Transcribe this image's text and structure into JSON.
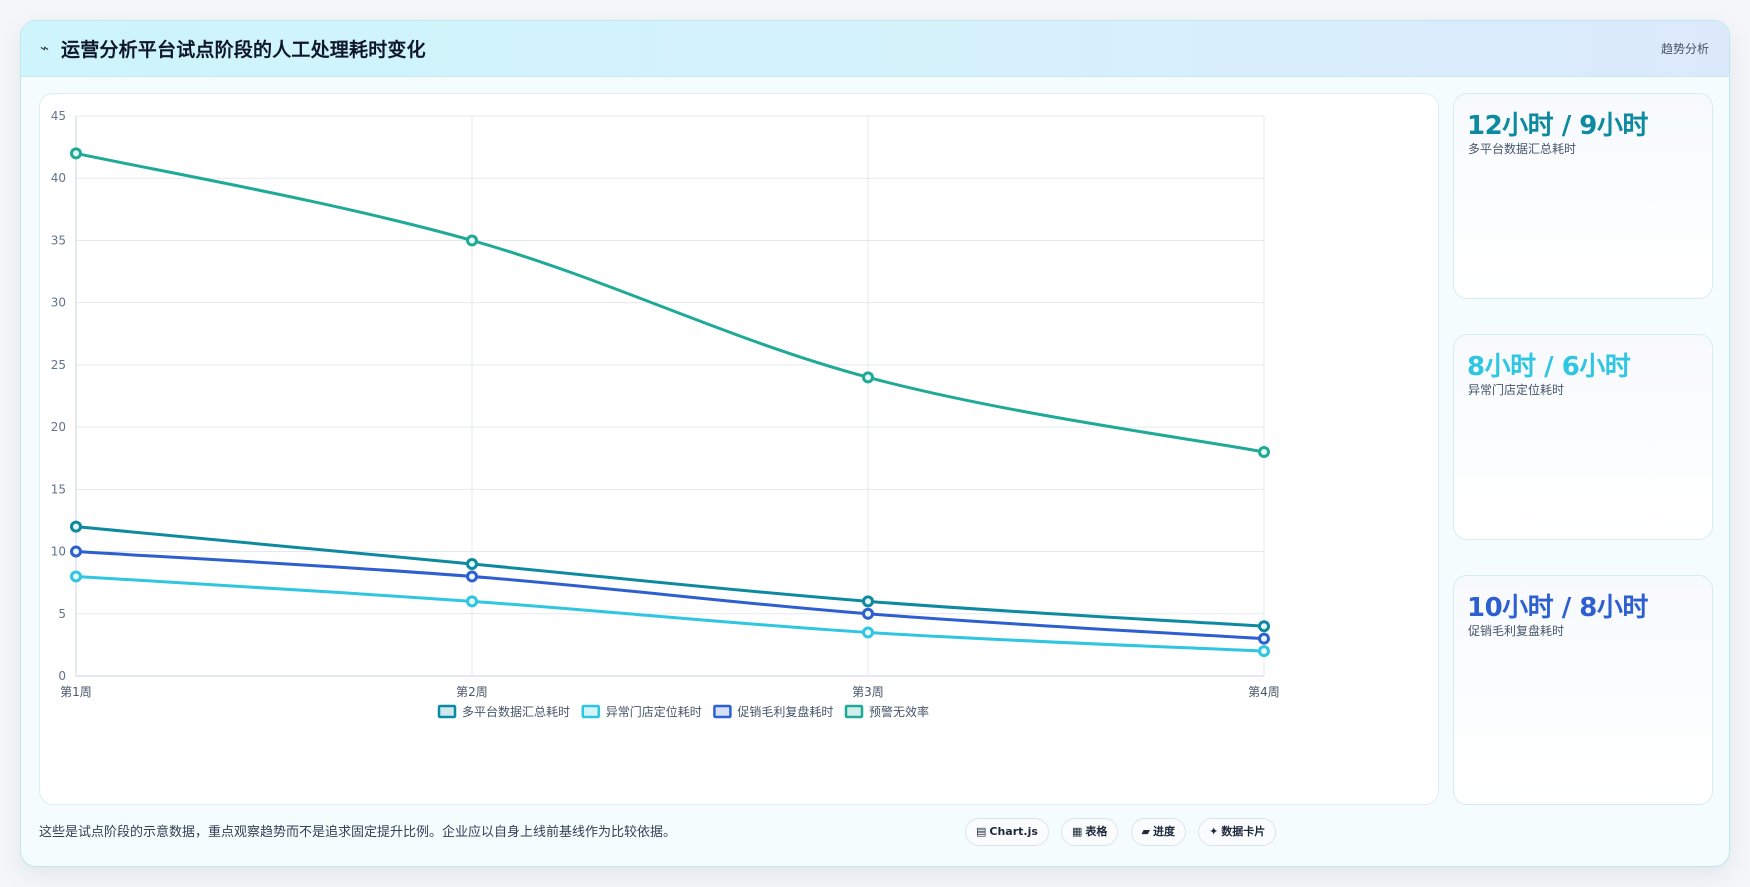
{
  "header": {
    "icon": "pulse-icon",
    "title": "运营分析平台试点阶段的人工处理耗时变化",
    "badge": "趋势分析"
  },
  "stats": [
    {
      "value": "12小时 / 9小时",
      "label": "多平台数据汇总耗时",
      "color": "#0e8aa0"
    },
    {
      "value": "8小时 / 6小时",
      "label": "异常门店定位耗时",
      "color": "#2ec6e0"
    },
    {
      "value": "10小时 / 8小时",
      "label": "促销毛利复盘耗时",
      "color": "#2d5fd1"
    }
  ],
  "footnote": "这些是试点阶段的示意数据，重点观察趋势而不是追求固定提升比例。企业应以自身上线前基线作为比较依据。",
  "chips": [
    {
      "icon": "chart-icon",
      "glyph": "▤",
      "label": "Chart.js"
    },
    {
      "icon": "table-icon",
      "glyph": "▦",
      "label": "表格"
    },
    {
      "icon": "progress-icon",
      "glyph": "▰",
      "label": "进度"
    },
    {
      "icon": "card-icon",
      "glyph": "✦",
      "label": "数据卡片"
    }
  ],
  "chart_data": {
    "type": "line",
    "categories": [
      "第1周",
      "第2周",
      "第3周",
      "第4周"
    ],
    "ylim": [
      0,
      45
    ],
    "yticks": [
      0,
      5,
      10,
      15,
      20,
      25,
      30,
      35,
      40,
      45
    ],
    "grid": true,
    "legend": "bottom",
    "series": [
      {
        "name": "多平台数据汇总耗时",
        "values": [
          12,
          9,
          6,
          4
        ],
        "color": "#0e8aa0"
      },
      {
        "name": "异常门店定位耗时",
        "values": [
          8,
          6,
          3.5,
          2
        ],
        "color": "#2ec6e0"
      },
      {
        "name": "促销毛利复盘耗时",
        "values": [
          10,
          8,
          5,
          3
        ],
        "color": "#2d5fd1"
      },
      {
        "name": "预警无效率",
        "values": [
          42,
          35,
          24,
          18
        ],
        "color": "#1faa98"
      }
    ]
  }
}
